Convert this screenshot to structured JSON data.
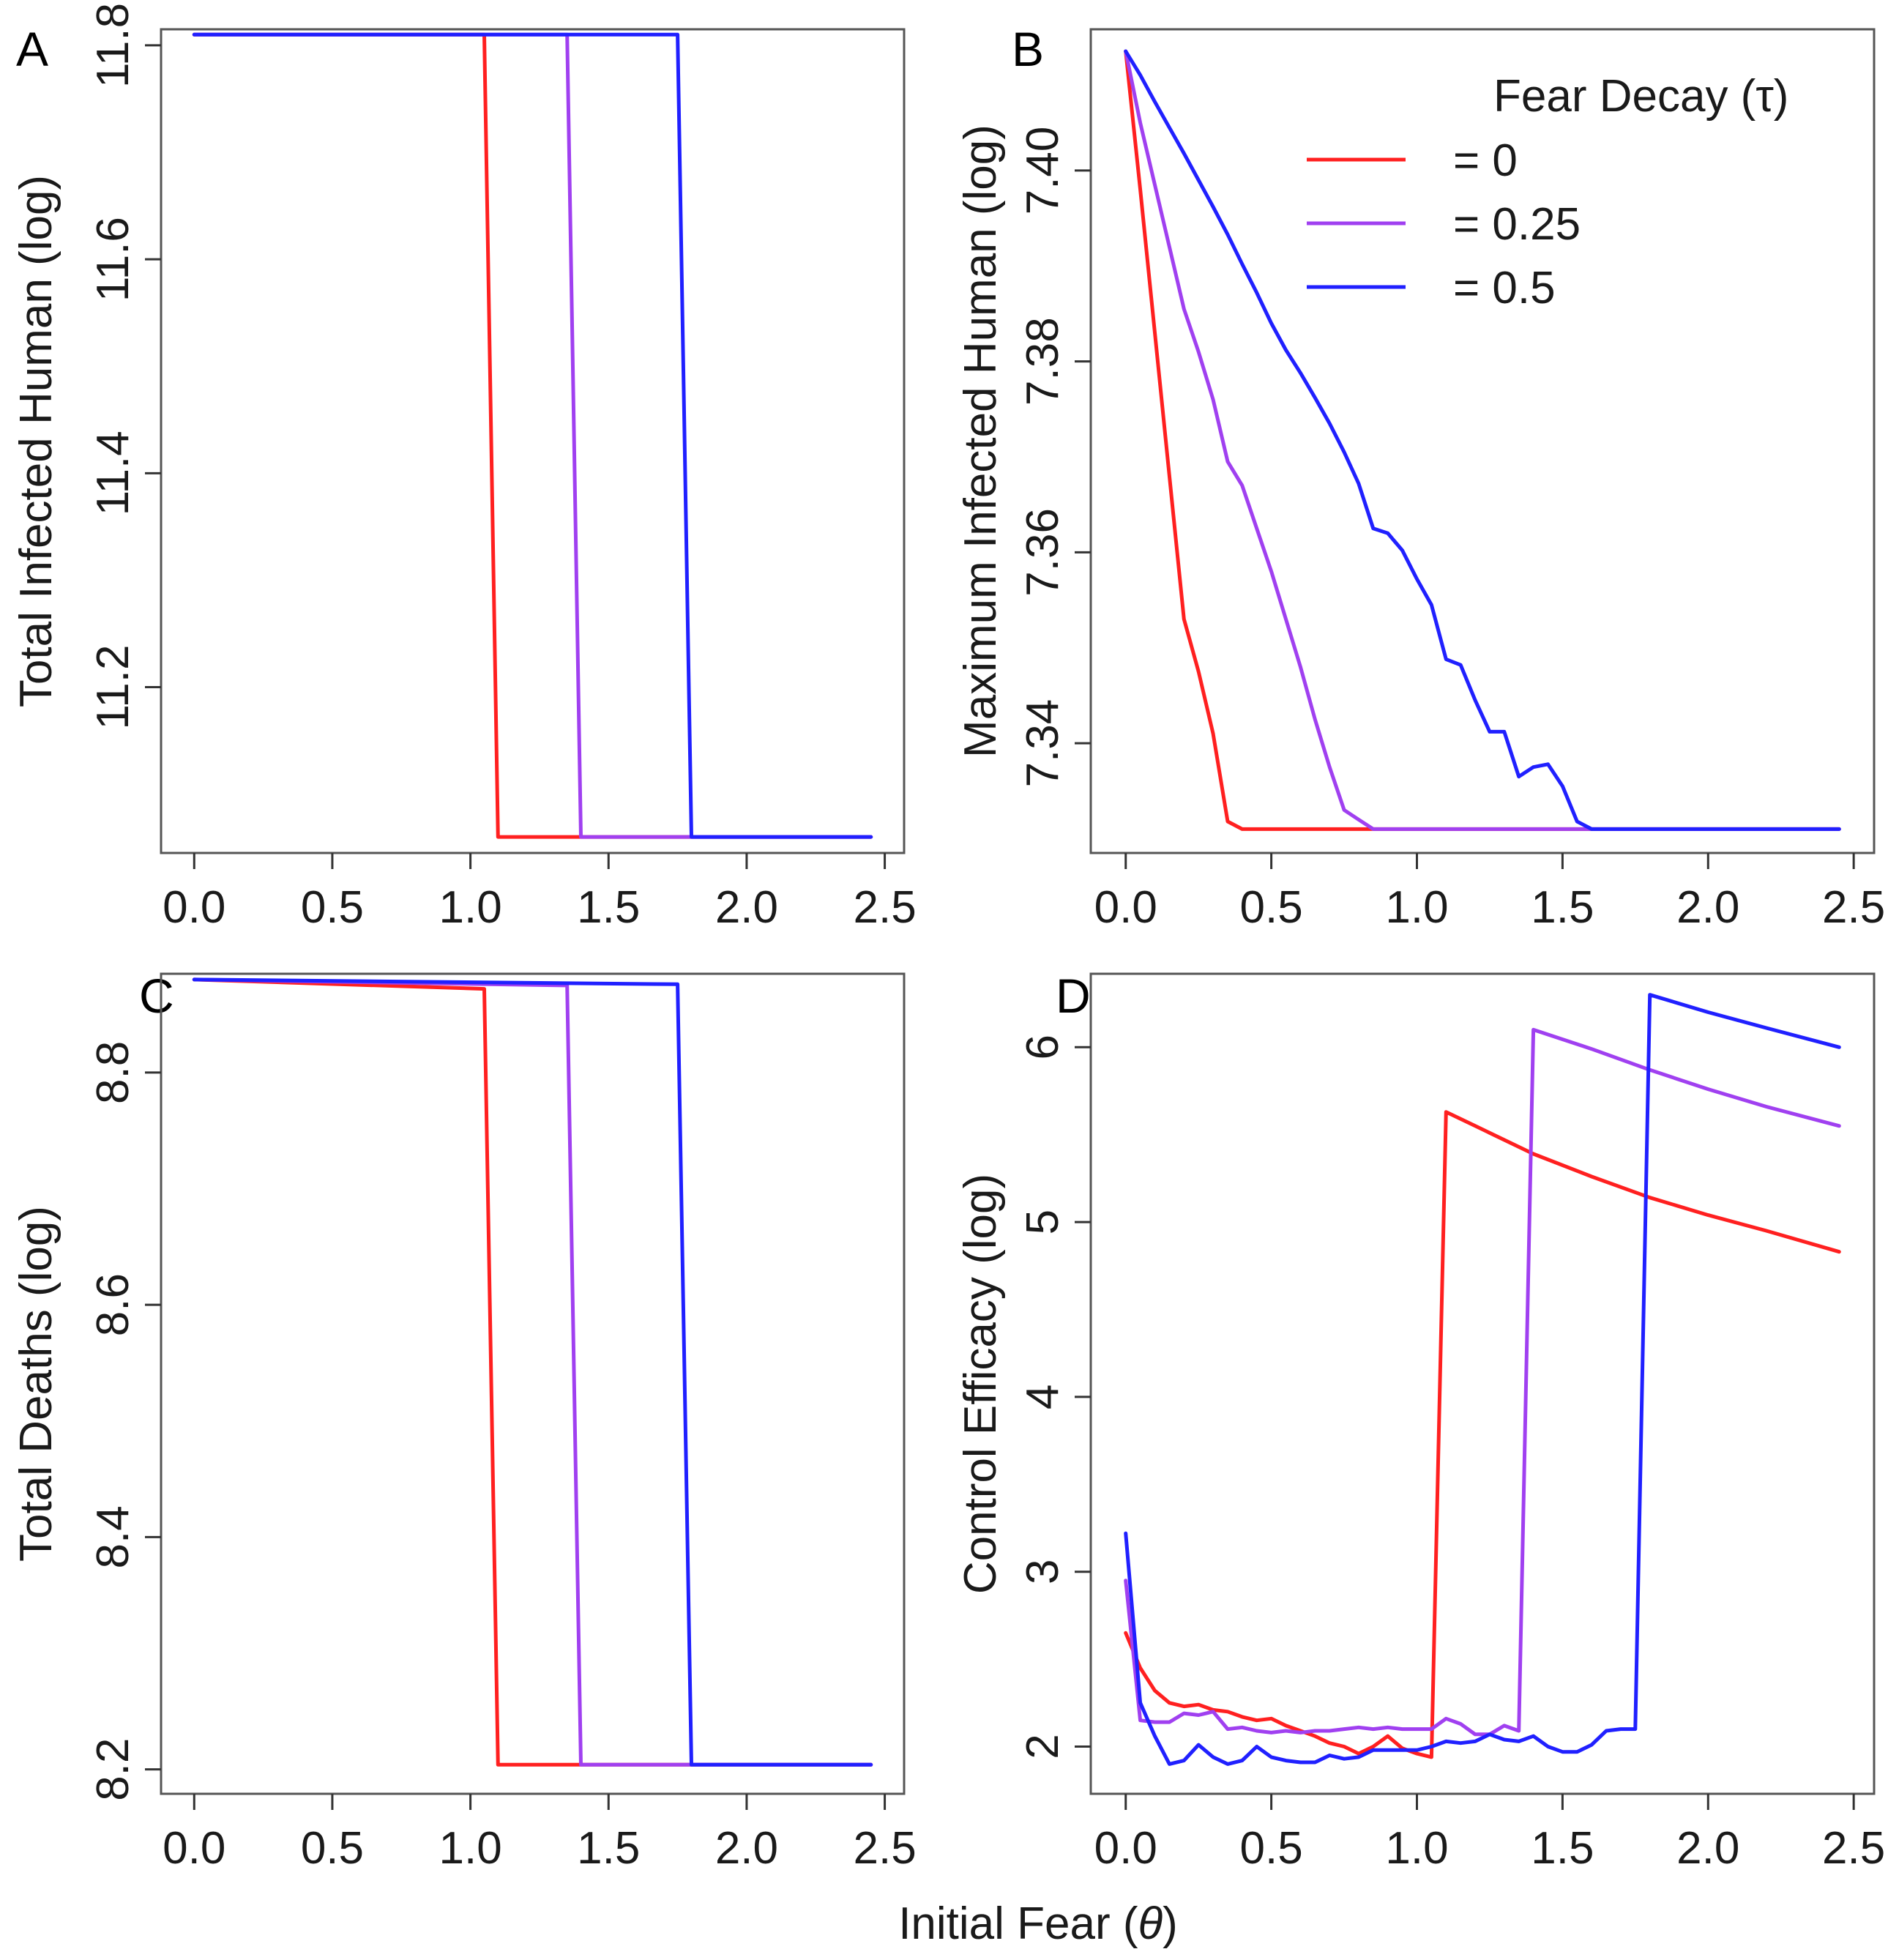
{
  "figure": {
    "xlabel_prefix": "Initial Fear (",
    "xlabel_symbol": "θ",
    "xlabel_suffix": ")"
  },
  "legend": {
    "title": "Fear Decay (τ)",
    "entries": [
      "= 0",
      "= 0.25",
      "= 0.5"
    ],
    "colors": [
      "#ff2020",
      "#a040f0",
      "#2020ff"
    ]
  },
  "chart_data": [
    {
      "panel": "A",
      "type": "line",
      "ylabel": "Total Infected Human (log)",
      "xlabel": "Initial Fear (θ)",
      "xlim": [
        -0.12,
        2.57
      ],
      "ylim": [
        11.045,
        11.815
      ],
      "xticks": [
        "0.0",
        "0.5",
        "1.0",
        "1.5",
        "2.0",
        "2.5"
      ],
      "xtick_values": [
        0,
        0.5,
        1,
        1.5,
        2,
        2.5
      ],
      "yticks": [
        "11.2",
        "11.4",
        "11.6",
        "11.8"
      ],
      "ytick_values": [
        11.2,
        11.4,
        11.6,
        11.8
      ],
      "series": [
        {
          "name": "= 0",
          "color": "#ff2020",
          "x": [
            0,
            1.05,
            1.1,
            2.45
          ],
          "y": [
            11.81,
            11.81,
            11.06,
            11.06
          ]
        },
        {
          "name": "= 0.25",
          "color": "#a040f0",
          "x": [
            0,
            1.35,
            1.4,
            2.45
          ],
          "y": [
            11.81,
            11.81,
            11.06,
            11.06
          ]
        },
        {
          "name": "= 0.5",
          "color": "#2020ff",
          "x": [
            0,
            1.75,
            1.8,
            2.45
          ],
          "y": [
            11.81,
            11.81,
            11.06,
            11.06
          ]
        }
      ]
    },
    {
      "panel": "B",
      "type": "line",
      "ylabel": "Maximum Infected Human (log)",
      "xlabel": "Initial Fear (θ)",
      "xlim": [
        -0.12,
        2.57
      ],
      "ylim": [
        7.3285,
        7.4148
      ],
      "xticks": [
        "0.0",
        "0.5",
        "1.0",
        "1.5",
        "2.0",
        "2.5"
      ],
      "xtick_values": [
        0,
        0.5,
        1,
        1.5,
        2,
        2.5
      ],
      "yticks": [
        "7.34",
        "7.36",
        "7.38",
        "7.40"
      ],
      "ytick_values": [
        7.34,
        7.36,
        7.38,
        7.4
      ],
      "series": [
        {
          "name": "= 0",
          "color": "#ff2020",
          "x": [
            0,
            0.05,
            0.1,
            0.15,
            0.2,
            0.25,
            0.3,
            0.35,
            0.4,
            2.45
          ],
          "y": [
            7.4125,
            7.398,
            7.383,
            7.368,
            7.353,
            7.3475,
            7.341,
            7.3318,
            7.331,
            7.331
          ]
        },
        {
          "name": "= 0.25",
          "color": "#a040f0",
          "x": [
            0,
            0.05,
            0.1,
            0.15,
            0.2,
            0.25,
            0.3,
            0.35,
            0.4,
            0.45,
            0.5,
            0.55,
            0.6,
            0.65,
            0.7,
            0.75,
            0.8,
            0.85,
            0.9,
            2.45
          ],
          "y": [
            7.4125,
            7.405,
            7.3985,
            7.392,
            7.3855,
            7.381,
            7.376,
            7.3695,
            7.367,
            7.3625,
            7.358,
            7.353,
            7.348,
            7.3425,
            7.3375,
            7.333,
            7.332,
            7.331,
            7.331,
            7.331
          ]
        },
        {
          "name": "= 0.5",
          "color": "#2020ff",
          "x": [
            0,
            0.05,
            0.1,
            0.15,
            0.2,
            0.25,
            0.3,
            0.35,
            0.4,
            0.45,
            0.5,
            0.55,
            0.6,
            0.65,
            0.7,
            0.75,
            0.8,
            0.85,
            0.9,
            0.95,
            1.0,
            1.05,
            1.1,
            1.15,
            1.2,
            1.25,
            1.3,
            1.35,
            1.4,
            1.45,
            1.5,
            1.55,
            1.6,
            1.65,
            2.45
          ],
          "y": [
            7.4125,
            7.41,
            7.4072,
            7.4045,
            7.4018,
            7.399,
            7.3962,
            7.3933,
            7.3902,
            7.3872,
            7.384,
            7.3812,
            7.3788,
            7.3762,
            7.3735,
            7.3705,
            7.3672,
            7.3625,
            7.362,
            7.3602,
            7.3572,
            7.3545,
            7.3488,
            7.3482,
            7.3445,
            7.3412,
            7.3412,
            7.3365,
            7.3375,
            7.3378,
            7.3355,
            7.3318,
            7.331,
            7.331,
            7.331
          ]
        }
      ]
    },
    {
      "panel": "C",
      "type": "line",
      "ylabel": "Total Deaths (log)",
      "xlabel": "Initial Fear (θ)",
      "xlim": [
        -0.12,
        2.57
      ],
      "ylim": [
        8.179,
        8.885
      ],
      "xticks": [
        "0.0",
        "0.5",
        "1.0",
        "1.5",
        "2.0",
        "2.5"
      ],
      "xtick_values": [
        0,
        0.5,
        1,
        1.5,
        2,
        2.5
      ],
      "yticks": [
        "8.2",
        "8.4",
        "8.6",
        "8.8"
      ],
      "ytick_values": [
        8.2,
        8.4,
        8.6,
        8.8
      ],
      "series": [
        {
          "name": "= 0",
          "color": "#ff2020",
          "x": [
            0,
            1.05,
            1.1,
            2.45
          ],
          "y": [
            8.88,
            8.872,
            8.204,
            8.204
          ]
        },
        {
          "name": "= 0.25",
          "color": "#a040f0",
          "x": [
            0,
            1.35,
            1.4,
            2.45
          ],
          "y": [
            8.88,
            8.875,
            8.204,
            8.204
          ]
        },
        {
          "name": "= 0.5",
          "color": "#2020ff",
          "x": [
            0,
            1.75,
            1.8,
            2.45
          ],
          "y": [
            8.88,
            8.876,
            8.204,
            8.204
          ]
        }
      ]
    },
    {
      "panel": "D",
      "type": "line",
      "ylabel": "Control Efficacy (log)",
      "xlabel": "Initial Fear (θ)",
      "xlim": [
        -0.12,
        2.57
      ],
      "ylim": [
        1.73,
        6.42
      ],
      "xticks": [
        "0.0",
        "0.5",
        "1.0",
        "1.5",
        "2.0",
        "2.5"
      ],
      "xtick_values": [
        0,
        0.5,
        1,
        1.5,
        2,
        2.5
      ],
      "yticks": [
        "2",
        "3",
        "4",
        "5",
        "6"
      ],
      "ytick_values": [
        2,
        3,
        4,
        5,
        6
      ],
      "series": [
        {
          "name": "= 0",
          "color": "#ff2020",
          "x": [
            0,
            0.05,
            0.1,
            0.15,
            0.2,
            0.25,
            0.3,
            0.35,
            0.4,
            0.45,
            0.5,
            0.55,
            0.6,
            0.65,
            0.7,
            0.75,
            0.8,
            0.85,
            0.9,
            0.95,
            1.0,
            1.05,
            1.1,
            1.2,
            1.4,
            1.6,
            1.8,
            2.0,
            2.2,
            2.45
          ],
          "y": [
            2.65,
            2.45,
            2.32,
            2.25,
            2.23,
            2.24,
            2.21,
            2.2,
            2.17,
            2.15,
            2.16,
            2.12,
            2.09,
            2.06,
            2.02,
            2.0,
            1.96,
            2.0,
            2.06,
            1.99,
            1.96,
            1.94,
            5.63,
            5.55,
            5.39,
            5.26,
            5.14,
            5.04,
            4.95,
            4.83
          ]
        },
        {
          "name": "= 0.25",
          "color": "#a040f0",
          "x": [
            0,
            0.05,
            0.1,
            0.15,
            0.2,
            0.25,
            0.3,
            0.35,
            0.4,
            0.45,
            0.5,
            0.55,
            0.6,
            0.65,
            0.7,
            0.75,
            0.8,
            0.85,
            0.9,
            0.95,
            1.0,
            1.05,
            1.1,
            1.15,
            1.2,
            1.25,
            1.3,
            1.35,
            1.4,
            1.6,
            1.8,
            2.0,
            2.2,
            2.45
          ],
          "y": [
            2.95,
            2.15,
            2.14,
            2.14,
            2.19,
            2.18,
            2.2,
            2.1,
            2.11,
            2.09,
            2.08,
            2.09,
            2.08,
            2.09,
            2.09,
            2.1,
            2.11,
            2.1,
            2.11,
            2.1,
            2.1,
            2.1,
            2.16,
            2.13,
            2.07,
            2.07,
            2.12,
            2.09,
            6.1,
            5.99,
            5.87,
            5.76,
            5.66,
            5.55
          ]
        },
        {
          "name": "= 0.5",
          "color": "#2020ff",
          "x": [
            0,
            0.05,
            0.1,
            0.15,
            0.2,
            0.25,
            0.3,
            0.35,
            0.4,
            0.45,
            0.5,
            0.55,
            0.6,
            0.65,
            0.7,
            0.75,
            0.8,
            0.85,
            0.9,
            0.95,
            1.0,
            1.05,
            1.1,
            1.15,
            1.2,
            1.25,
            1.3,
            1.35,
            1.4,
            1.45,
            1.5,
            1.55,
            1.6,
            1.65,
            1.7,
            1.75,
            1.8,
            2.0,
            2.2,
            2.45
          ],
          "y": [
            3.22,
            2.25,
            2.06,
            1.9,
            1.92,
            2.01,
            1.94,
            1.9,
            1.92,
            2.0,
            1.94,
            1.92,
            1.91,
            1.91,
            1.95,
            1.93,
            1.94,
            1.98,
            1.98,
            1.98,
            1.98,
            2.0,
            2.03,
            2.02,
            2.03,
            2.07,
            2.04,
            2.03,
            2.06,
            2.0,
            1.97,
            1.97,
            2.01,
            2.09,
            2.1,
            2.1,
            6.3,
            6.2,
            6.11,
            6.0
          ]
        }
      ]
    }
  ]
}
